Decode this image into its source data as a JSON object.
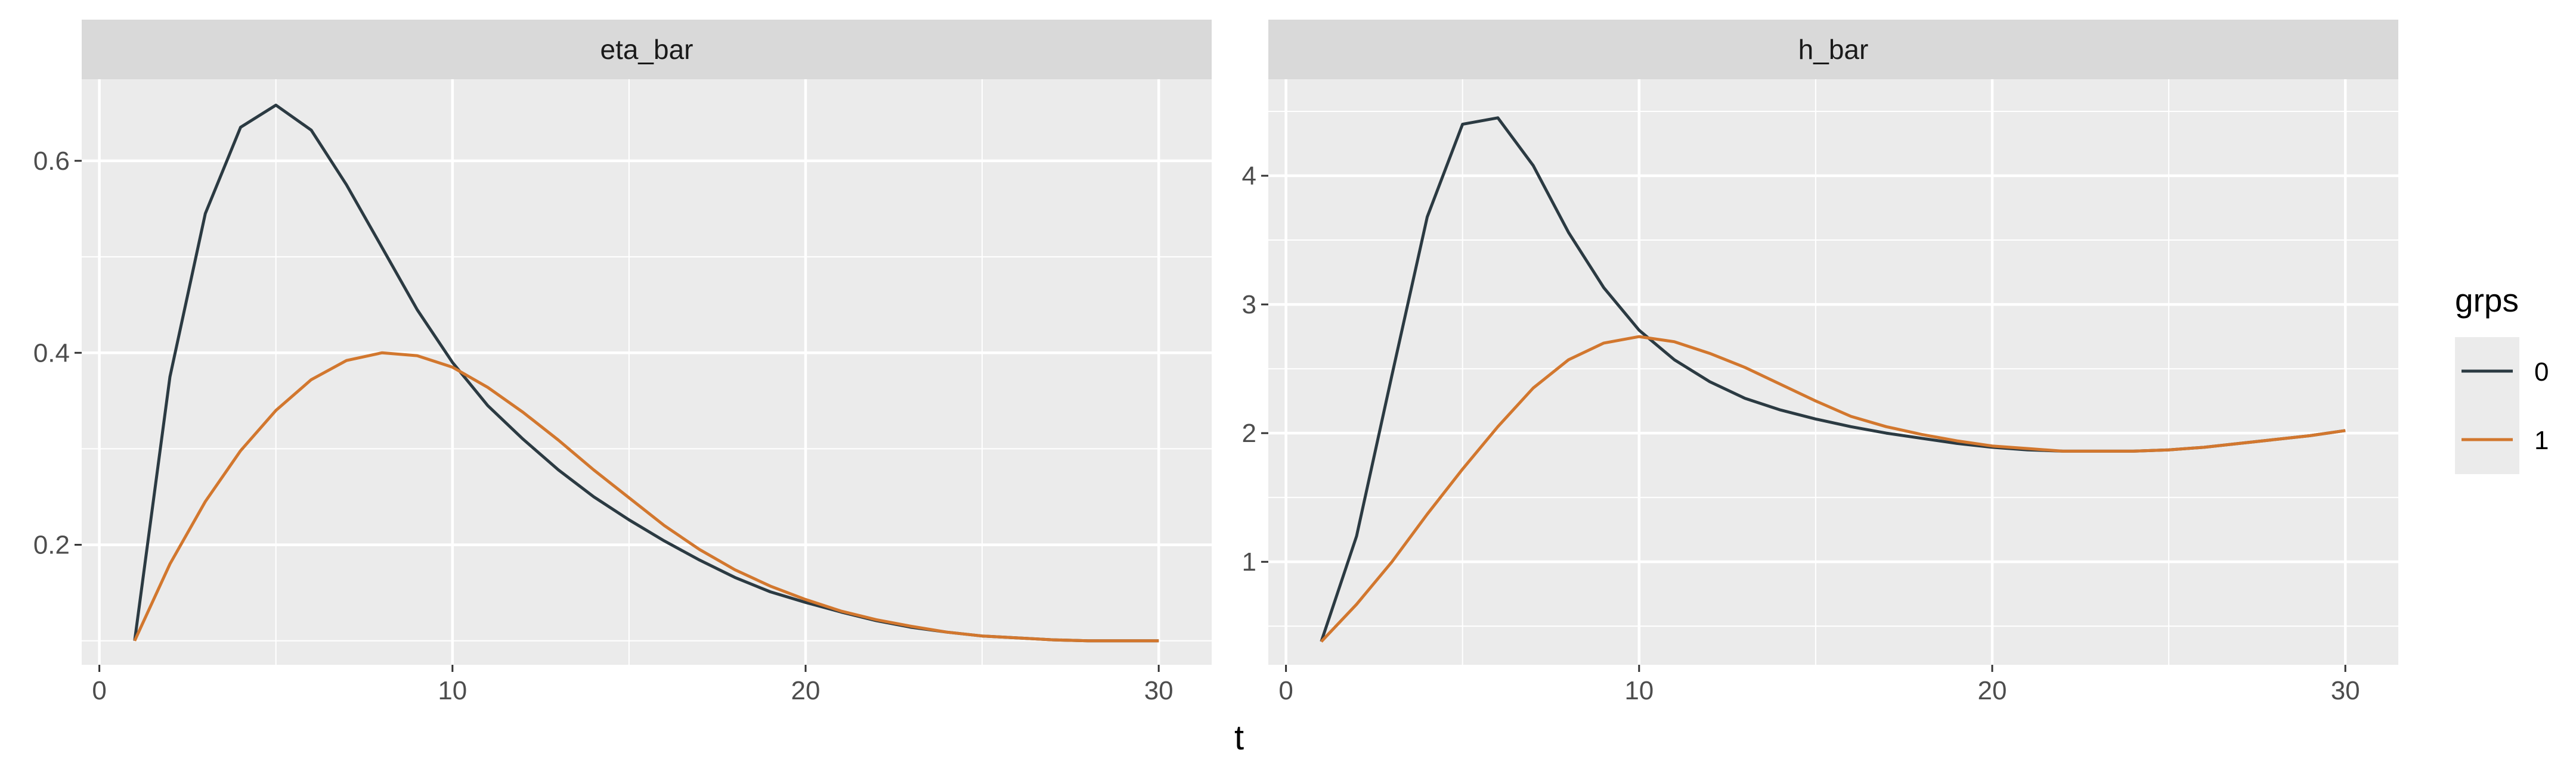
{
  "chart_data": {
    "type": "line",
    "xlabel": "t",
    "legend": {
      "title": "grps",
      "position": "right",
      "entries": [
        {
          "label": "0",
          "color": "#2b3a42"
        },
        {
          "label": "1",
          "color": "#d2772e"
        }
      ]
    },
    "panels": [
      {
        "strip_label": "eta_bar",
        "xlim": [
          -0.5,
          31.5
        ],
        "ylim": [
          0.075,
          0.685
        ],
        "x_ticks": [
          0,
          10,
          20,
          30
        ],
        "x_tick_labels": [
          "0",
          "10",
          "20",
          "30"
        ],
        "y_ticks": [
          0.2,
          0.4,
          0.6
        ],
        "y_tick_labels": [
          "0.2",
          "0.4",
          "0.6"
        ],
        "x": [
          1,
          2,
          3,
          4,
          5,
          6,
          7,
          8,
          9,
          10,
          11,
          12,
          13,
          14,
          15,
          16,
          17,
          18,
          19,
          20,
          21,
          22,
          23,
          24,
          25,
          26,
          27,
          28,
          29,
          30
        ],
        "series": [
          {
            "name": "0",
            "color": "#2b3a42",
            "values": [
              0.1,
              0.375,
              0.545,
              0.635,
              0.658,
              0.632,
              0.575,
              0.51,
              0.445,
              0.39,
              0.345,
              0.31,
              0.278,
              0.25,
              0.226,
              0.204,
              0.184,
              0.166,
              0.151,
              0.14,
              0.13,
              0.121,
              0.114,
              0.109,
              0.105,
              0.103,
              0.101,
              0.1,
              0.1,
              0.1
            ]
          },
          {
            "name": "1",
            "color": "#d2772e",
            "values": [
              0.1,
              0.18,
              0.245,
              0.298,
              0.34,
              0.372,
              0.392,
              0.4,
              0.397,
              0.385,
              0.364,
              0.338,
              0.309,
              0.278,
              0.249,
              0.22,
              0.195,
              0.174,
              0.157,
              0.143,
              0.131,
              0.122,
              0.115,
              0.109,
              0.105,
              0.103,
              0.101,
              0.1,
              0.1,
              0.1
            ]
          }
        ]
      },
      {
        "strip_label": "h_bar",
        "xlim": [
          -0.5,
          31.5
        ],
        "ylim": [
          0.2,
          4.75
        ],
        "x_ticks": [
          0,
          10,
          20,
          30
        ],
        "x_tick_labels": [
          "0",
          "10",
          "20",
          "30"
        ],
        "y_ticks": [
          1,
          2,
          3,
          4
        ],
        "y_tick_labels": [
          "1",
          "2",
          "3",
          "4"
        ],
        "x": [
          1,
          2,
          3,
          4,
          5,
          6,
          7,
          8,
          9,
          10,
          11,
          12,
          13,
          14,
          15,
          16,
          17,
          18,
          19,
          20,
          21,
          22,
          23,
          24,
          25,
          26,
          27,
          28,
          29,
          30
        ],
        "series": [
          {
            "name": "0",
            "color": "#2b3a42",
            "values": [
              0.38,
              1.2,
              2.45,
              3.68,
              4.4,
              4.45,
              4.08,
              3.56,
              3.13,
              2.8,
              2.57,
              2.4,
              2.27,
              2.18,
              2.11,
              2.05,
              2.0,
              1.96,
              1.92,
              1.89,
              1.87,
              1.86,
              1.86,
              1.86,
              1.87,
              1.89,
              1.92,
              1.95,
              1.98,
              2.02
            ]
          },
          {
            "name": "1",
            "color": "#d2772e",
            "values": [
              0.38,
              0.67,
              1.0,
              1.37,
              1.72,
              2.05,
              2.35,
              2.57,
              2.7,
              2.75,
              2.71,
              2.62,
              2.51,
              2.38,
              2.25,
              2.13,
              2.05,
              1.99,
              1.94,
              1.9,
              1.88,
              1.86,
              1.86,
              1.86,
              1.87,
              1.89,
              1.92,
              1.95,
              1.98,
              2.02
            ]
          }
        ]
      }
    ]
  }
}
